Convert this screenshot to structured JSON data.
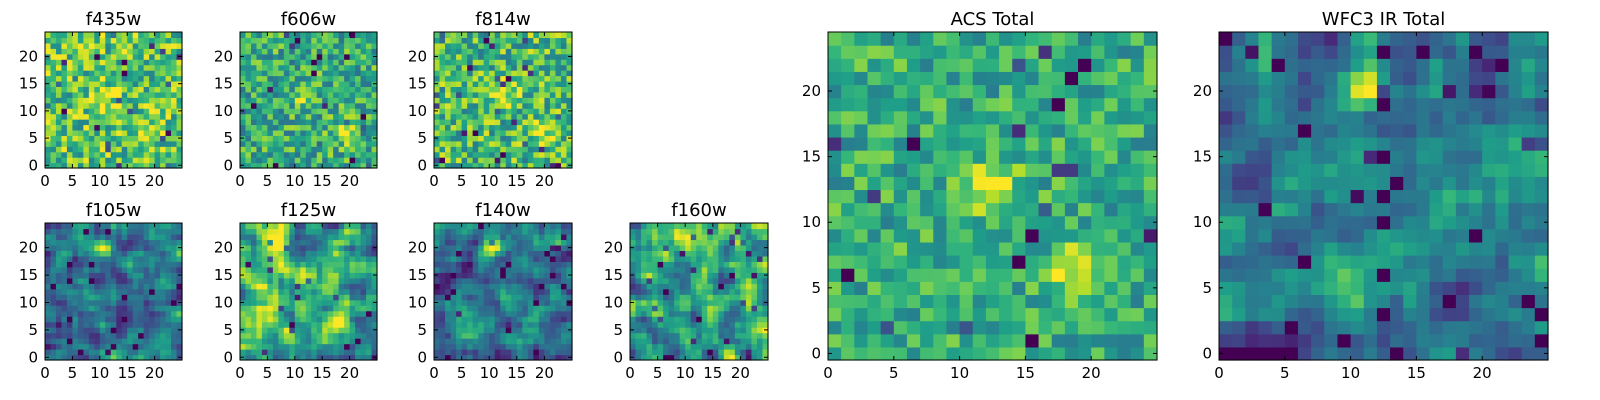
{
  "chart_data": [
    {
      "type": "heatmap",
      "title": "f435w",
      "xticks": [
        "0",
        "5",
        "10",
        "15",
        "20"
      ],
      "yticks": [
        "0",
        "5",
        "10",
        "15",
        "20"
      ],
      "xlim": [
        0,
        25
      ],
      "ylim": [
        0,
        25
      ],
      "grid": false,
      "colormap": "viridis"
    },
    {
      "type": "heatmap",
      "title": "f606w",
      "xticks": [
        "0",
        "5",
        "10",
        "15",
        "20"
      ],
      "yticks": [
        "0",
        "5",
        "10",
        "15",
        "20"
      ],
      "xlim": [
        0,
        25
      ],
      "ylim": [
        0,
        25
      ],
      "grid": false,
      "colormap": "viridis"
    },
    {
      "type": "heatmap",
      "title": "f814w",
      "xticks": [
        "0",
        "5",
        "10",
        "15",
        "20"
      ],
      "yticks": [
        "0",
        "5",
        "10",
        "15",
        "20"
      ],
      "xlim": [
        0,
        25
      ],
      "ylim": [
        0,
        25
      ],
      "grid": false,
      "colormap": "viridis"
    },
    {
      "type": "heatmap",
      "title": "f105w",
      "xticks": [
        "0",
        "5",
        "10",
        "15",
        "20"
      ],
      "yticks": [
        "0",
        "5",
        "10",
        "15",
        "20"
      ],
      "xlim": [
        0,
        25
      ],
      "ylim": [
        0,
        25
      ],
      "grid": false,
      "colormap": "viridis"
    },
    {
      "type": "heatmap",
      "title": "f125w",
      "xticks": [
        "0",
        "5",
        "10",
        "15",
        "20"
      ],
      "yticks": [
        "0",
        "5",
        "10",
        "15",
        "20"
      ],
      "xlim": [
        0,
        25
      ],
      "ylim": [
        0,
        25
      ],
      "grid": false,
      "colormap": "viridis"
    },
    {
      "type": "heatmap",
      "title": "f140w",
      "xticks": [
        "0",
        "5",
        "10",
        "15",
        "20"
      ],
      "yticks": [
        "0",
        "5",
        "10",
        "15",
        "20"
      ],
      "xlim": [
        0,
        25
      ],
      "ylim": [
        0,
        25
      ],
      "grid": false,
      "colormap": "viridis"
    },
    {
      "type": "heatmap",
      "title": "f160w",
      "xticks": [
        "0",
        "5",
        "10",
        "15",
        "20"
      ],
      "yticks": [
        "0",
        "5",
        "10",
        "15",
        "20"
      ],
      "xlim": [
        0,
        25
      ],
      "ylim": [
        0,
        25
      ],
      "grid": false,
      "colormap": "viridis"
    },
    {
      "type": "heatmap",
      "title": "ACS Total",
      "xticks": [
        "0",
        "5",
        "10",
        "15",
        "20"
      ],
      "yticks": [
        "0",
        "5",
        "10",
        "15",
        "20"
      ],
      "xlim": [
        0,
        25
      ],
      "ylim": [
        0,
        25
      ],
      "grid": false,
      "colormap": "viridis"
    },
    {
      "type": "heatmap",
      "title": "WFC3 IR Total",
      "xticks": [
        "0",
        "5",
        "10",
        "15",
        "20"
      ],
      "yticks": [
        "0",
        "5",
        "10",
        "15",
        "20"
      ],
      "xlim": [
        0,
        25
      ],
      "ylim": [
        0,
        25
      ],
      "grid": false,
      "colormap": "viridis"
    }
  ]
}
